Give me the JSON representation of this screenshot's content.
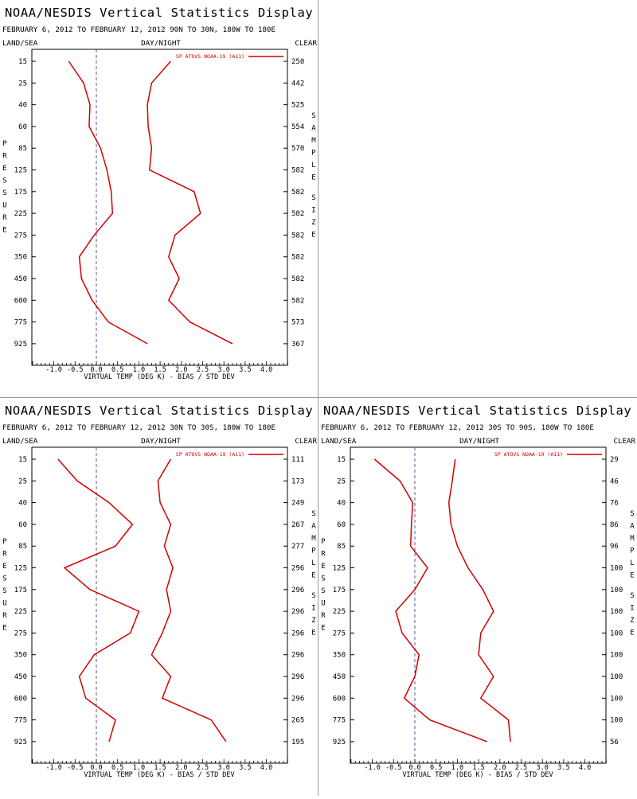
{
  "chart_data": [
    {
      "type": "line",
      "title": "NOAA/NESDIS Vertical Statistics Display",
      "subtitle": "FEBRUARY 6, 2012 TO FEBRUARY 12, 2012 90N TO 30N, 180W TO 180E",
      "corner_labels": [
        "LAND/SEA",
        "DAY/NIGHT",
        "CLEAR"
      ],
      "ylabel": "PRESSURE",
      "right_axis_label": "SAMPLE SIZE",
      "xlabel": "VIRTUAL TEMP (DEG K) - BIAS / STD DEV",
      "legend": "SP ATOVS NOAA-19 (A11)",
      "y_ticks": [
        "15",
        "25",
        "40",
        "60",
        "85",
        "125",
        "175",
        "225",
        "275",
        "350",
        "450",
        "600",
        "775",
        "925"
      ],
      "x_ticks": [
        "-1.0",
        "-0.5",
        "0.0",
        "0.5",
        "1.0",
        "1.5",
        "2.0",
        "2.5",
        "3.0",
        "3.5",
        "4.0"
      ],
      "xlim": [
        -1.5,
        4.5
      ],
      "sample_size": [
        "250",
        "442",
        "525",
        "554",
        "570",
        "582",
        "582",
        "582",
        "582",
        "582",
        "582",
        "582",
        "573",
        "367"
      ],
      "series": [
        {
          "label": "BIAS",
          "values": [
            -0.65,
            -0.3,
            -0.15,
            -0.17,
            0.1,
            0.25,
            0.35,
            0.38,
            -0.05,
            -0.4,
            -0.35,
            -0.1,
            0.28,
            1.2
          ]
        },
        {
          "label": "STD DEV",
          "values": [
            1.75,
            1.3,
            1.2,
            1.22,
            1.3,
            1.25,
            2.3,
            2.45,
            1.85,
            1.7,
            1.95,
            1.7,
            2.2,
            3.2
          ]
        }
      ],
      "color": "#d40000"
    },
    {
      "type": "line",
      "title": "NOAA/NESDIS Vertical Statistics Display",
      "subtitle": "FEBRUARY 6, 2012 TO FEBRUARY 12, 2012 30N TO 30S, 180W TO 180E",
      "corner_labels": [
        "LAND/SEA",
        "DAY/NIGHT",
        "CLEAR"
      ],
      "ylabel": "PRESSURE",
      "right_axis_label": "SAMPLE SIZE",
      "xlabel": "VIRTUAL TEMP (DEG K) - BIAS / STD DEV",
      "legend": "SP ATOVS NOAA-19 (A11)",
      "y_ticks": [
        "15",
        "25",
        "40",
        "60",
        "85",
        "125",
        "175",
        "225",
        "275",
        "350",
        "450",
        "600",
        "775",
        "925"
      ],
      "x_ticks": [
        "-1.0",
        "-0.5",
        "0.0",
        "0.5",
        "1.0",
        "1.5",
        "2.0",
        "2.5",
        "3.0",
        "3.5",
        "4.0"
      ],
      "xlim": [
        -1.5,
        4.5
      ],
      "sample_size": [
        "111",
        "173",
        "249",
        "267",
        "277",
        "296",
        "296",
        "296",
        "296",
        "296",
        "296",
        "296",
        "265",
        "195"
      ],
      "series": [
        {
          "label": "BIAS",
          "values": [
            -0.9,
            -0.45,
            0.3,
            0.85,
            0.45,
            -0.75,
            -0.15,
            1.0,
            0.8,
            -0.05,
            -0.4,
            -0.25,
            0.45,
            0.3
          ]
        },
        {
          "label": "STD DEV",
          "values": [
            1.75,
            1.45,
            1.5,
            1.75,
            1.6,
            1.8,
            1.65,
            1.75,
            1.55,
            1.3,
            1.75,
            1.55,
            2.7,
            3.05
          ]
        }
      ],
      "color": "#d40000"
    },
    {
      "type": "line",
      "title": "NOAA/NESDIS Vertical Statistics Display",
      "subtitle": "FEBRUARY 6, 2012 TO FEBRUARY 12, 2012 30S TO 90S, 180W TO 180E",
      "corner_labels": [
        "LAND/SEA",
        "DAY/NIGHT",
        "CLEAR"
      ],
      "ylabel": "PRESSURE",
      "right_axis_label": "SAMPLE SIZE",
      "xlabel": "VIRTUAL TEMP (DEG K) - BIAS / STD DEV",
      "legend": "SP ATOVS NOAA-19 (A11)",
      "y_ticks": [
        "15",
        "25",
        "40",
        "60",
        "85",
        "125",
        "175",
        "225",
        "275",
        "350",
        "450",
        "600",
        "775",
        "925"
      ],
      "x_ticks": [
        "-1.0",
        "-0.5",
        "0.0",
        "0.5",
        "1.0",
        "1.5",
        "2.0",
        "2.5",
        "3.0",
        "3.5",
        "4.0"
      ],
      "xlim": [
        -1.5,
        4.5
      ],
      "sample_size": [
        "29",
        "46",
        "76",
        "86",
        "96",
        "100",
        "100",
        "100",
        "100",
        "100",
        "100",
        "100",
        "100",
        "56"
      ],
      "series": [
        {
          "label": "BIAS",
          "values": [
            -0.95,
            -0.35,
            -0.05,
            -0.08,
            -0.1,
            0.3,
            0.0,
            -0.45,
            -0.3,
            0.1,
            0.0,
            -0.25,
            0.35,
            1.7
          ]
        },
        {
          "label": "STD DEV",
          "values": [
            0.95,
            0.88,
            0.8,
            0.85,
            1.0,
            1.25,
            1.6,
            1.85,
            1.55,
            1.5,
            1.85,
            1.55,
            2.2,
            2.25
          ]
        }
      ],
      "color": "#d40000"
    }
  ]
}
